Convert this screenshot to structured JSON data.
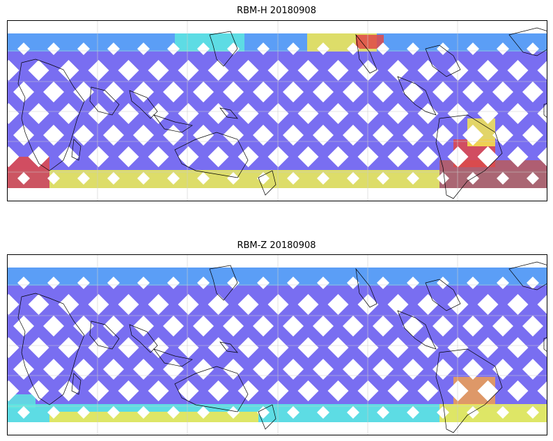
{
  "panels": [
    {
      "title": "RBM-H 20180908",
      "palette": {
        "low": "#6a5ef0",
        "mid_low": "#5aa0f5",
        "mid": "#5ee6e0",
        "mid_high": "#f5e850",
        "high": "#e04848",
        "very_high": "#b85c5c"
      }
    },
    {
      "title": "RBM-Z 20180908",
      "palette": {
        "low": "#6a5ef0",
        "mid_low": "#5aa0f5",
        "mid": "#5ee6e0",
        "mid_high": "#f5e850",
        "high": "#f0a050",
        "very_high": "#f0a050"
      }
    }
  ],
  "colors": {
    "coastline": "#000000",
    "gridline": "#cccccc"
  }
}
